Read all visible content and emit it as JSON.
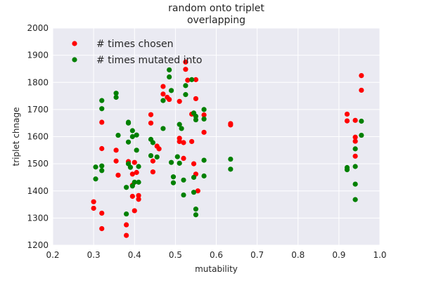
{
  "chart_data": {
    "type": "scatter",
    "title_lines": [
      "random onto triplet",
      "overlapping"
    ],
    "xlabel": "mutability",
    "ylabel": "triplet chnage",
    "xlim": [
      0.2,
      1.0
    ],
    "ylim": [
      1200,
      2000
    ],
    "xticks": [
      "0.2",
      "0.3",
      "0.4",
      "0.5",
      "0.6",
      "0.7",
      "0.8",
      "0.9",
      "1.0"
    ],
    "yticks": [
      "1200",
      "1300",
      "1400",
      "1500",
      "1600",
      "1700",
      "1800",
      "1900",
      "2000"
    ],
    "grid": true,
    "legend_position": "top-left",
    "series": [
      {
        "name": "# times chosen",
        "color": "#ff0000",
        "points": [
          [
            0.3,
            1360
          ],
          [
            0.3,
            1336
          ],
          [
            0.32,
            1318
          ],
          [
            0.32,
            1261
          ],
          [
            0.32,
            1556
          ],
          [
            0.32,
            1653
          ],
          [
            0.355,
            1550
          ],
          [
            0.355,
            1510
          ],
          [
            0.36,
            1458
          ],
          [
            0.38,
            1275
          ],
          [
            0.38,
            1236
          ],
          [
            0.385,
            1508
          ],
          [
            0.395,
            1462
          ],
          [
            0.395,
            1421
          ],
          [
            0.395,
            1380
          ],
          [
            0.4,
            1327
          ],
          [
            0.4,
            1505
          ],
          [
            0.405,
            1468
          ],
          [
            0.41,
            1383
          ],
          [
            0.41,
            1369
          ],
          [
            0.44,
            1681
          ],
          [
            0.44,
            1650
          ],
          [
            0.445,
            1510
          ],
          [
            0.445,
            1470
          ],
          [
            0.455,
            1565
          ],
          [
            0.46,
            1555
          ],
          [
            0.47,
            1785
          ],
          [
            0.47,
            1757
          ],
          [
            0.48,
            1745
          ],
          [
            0.485,
            1737
          ],
          [
            0.51,
            1730
          ],
          [
            0.51,
            1594
          ],
          [
            0.51,
            1582
          ],
          [
            0.52,
            1578
          ],
          [
            0.52,
            1520
          ],
          [
            0.525,
            1875
          ],
          [
            0.525,
            1848
          ],
          [
            0.53,
            1808
          ],
          [
            0.54,
            1683
          ],
          [
            0.54,
            1582
          ],
          [
            0.545,
            1500
          ],
          [
            0.55,
            1810
          ],
          [
            0.55,
            1740
          ],
          [
            0.55,
            1462
          ],
          [
            0.555,
            1400
          ],
          [
            0.57,
            1680
          ],
          [
            0.57,
            1616
          ],
          [
            0.635,
            1648
          ],
          [
            0.635,
            1643
          ],
          [
            0.92,
            1683
          ],
          [
            0.92,
            1658
          ],
          [
            0.94,
            1660
          ],
          [
            0.94,
            1598
          ],
          [
            0.94,
            1583
          ],
          [
            0.94,
            1528
          ],
          [
            0.955,
            1825
          ],
          [
            0.955,
            1771
          ]
        ]
      },
      {
        "name": "# times mutated into",
        "color": "#008000",
        "points": [
          [
            0.305,
            1488
          ],
          [
            0.305,
            1444
          ],
          [
            0.32,
            1733
          ],
          [
            0.32,
            1703
          ],
          [
            0.32,
            1492
          ],
          [
            0.32,
            1475
          ],
          [
            0.355,
            1760
          ],
          [
            0.355,
            1745
          ],
          [
            0.36,
            1605
          ],
          [
            0.38,
            1413
          ],
          [
            0.38,
            1315
          ],
          [
            0.385,
            1653
          ],
          [
            0.385,
            1650
          ],
          [
            0.385,
            1580
          ],
          [
            0.385,
            1500
          ],
          [
            0.39,
            1487
          ],
          [
            0.395,
            1622
          ],
          [
            0.395,
            1600
          ],
          [
            0.395,
            1418
          ],
          [
            0.4,
            1432
          ],
          [
            0.405,
            1606
          ],
          [
            0.405,
            1550
          ],
          [
            0.41,
            1490
          ],
          [
            0.41,
            1432
          ],
          [
            0.44,
            1590
          ],
          [
            0.44,
            1530
          ],
          [
            0.445,
            1578
          ],
          [
            0.455,
            1525
          ],
          [
            0.47,
            1733
          ],
          [
            0.47,
            1630
          ],
          [
            0.485,
            1846
          ],
          [
            0.485,
            1820
          ],
          [
            0.49,
            1770
          ],
          [
            0.49,
            1505
          ],
          [
            0.495,
            1452
          ],
          [
            0.495,
            1430
          ],
          [
            0.505,
            1526
          ],
          [
            0.51,
            1502
          ],
          [
            0.51,
            1645
          ],
          [
            0.515,
            1630
          ],
          [
            0.52,
            1440
          ],
          [
            0.52,
            1385
          ],
          [
            0.525,
            1788
          ],
          [
            0.525,
            1755
          ],
          [
            0.54,
            1810
          ],
          [
            0.545,
            1687
          ],
          [
            0.545,
            1450
          ],
          [
            0.545,
            1395
          ],
          [
            0.55,
            1675
          ],
          [
            0.55,
            1662
          ],
          [
            0.55,
            1333
          ],
          [
            0.55,
            1312
          ],
          [
            0.57,
            1700
          ],
          [
            0.57,
            1665
          ],
          [
            0.57,
            1513
          ],
          [
            0.57,
            1455
          ],
          [
            0.635,
            1517
          ],
          [
            0.635,
            1480
          ],
          [
            0.92,
            1486
          ],
          [
            0.92,
            1478
          ],
          [
            0.94,
            1555
          ],
          [
            0.94,
            1490
          ],
          [
            0.94,
            1425
          ],
          [
            0.94,
            1368
          ],
          [
            0.955,
            1657
          ],
          [
            0.955,
            1605
          ]
        ]
      }
    ]
  }
}
